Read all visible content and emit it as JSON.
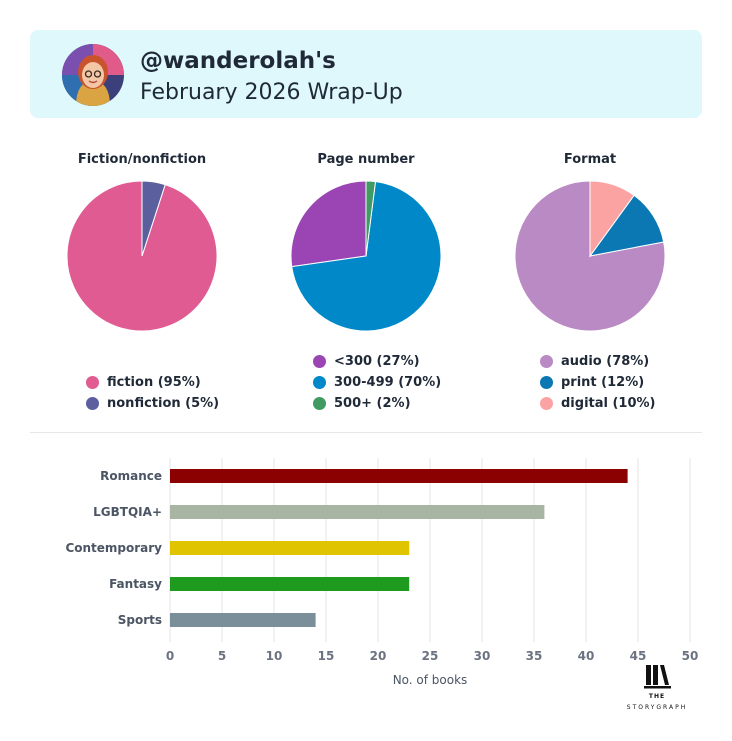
{
  "header": {
    "username": "@wanderolah's",
    "subtitle": "February 2026 Wrap-Up"
  },
  "chart_data": [
    {
      "type": "pie",
      "title": "Fiction/nonfiction",
      "slices": [
        {
          "label": "fiction (95%)",
          "value": 95,
          "color": "#df5b91"
        },
        {
          "label": "nonfiction (5%)",
          "value": 5,
          "color": "#5b5f9e"
        }
      ]
    },
    {
      "type": "pie",
      "title": "Page number",
      "slices": [
        {
          "label": "<300 (27%)",
          "value": 27,
          "color": "#9a45b3"
        },
        {
          "label": "300-499 (70%)",
          "value": 70,
          "color": "#0088c8"
        },
        {
          "label": "500+ (2%)",
          "value": 2,
          "color": "#3f9a63"
        }
      ]
    },
    {
      "type": "pie",
      "title": "Format",
      "slices": [
        {
          "label": "audio (78%)",
          "value": 78,
          "color": "#b98ac4"
        },
        {
          "label": "print (12%)",
          "value": 12,
          "color": "#0b78b4"
        },
        {
          "label": "digital (10%)",
          "value": 10,
          "color": "#fba3a3"
        }
      ]
    },
    {
      "type": "bar",
      "orientation": "horizontal",
      "categories": [
        "Romance",
        "LGBTQIA+",
        "Contemporary",
        "Fantasy",
        "Sports"
      ],
      "values": [
        44,
        36,
        23,
        23,
        14
      ],
      "colors": [
        "#8b0000",
        "#a8b5a2",
        "#e0c400",
        "#1e9a1e",
        "#7a8f99"
      ],
      "xlabel": "No. of books",
      "xlim": [
        0,
        50
      ],
      "xticks": [
        "0",
        "5",
        "10",
        "15",
        "20",
        "25",
        "30",
        "35",
        "40",
        "45",
        "50"
      ],
      "grid": true
    }
  ],
  "logo": {
    "text_the": "THE",
    "text_brand": "STORYGRAPH"
  }
}
